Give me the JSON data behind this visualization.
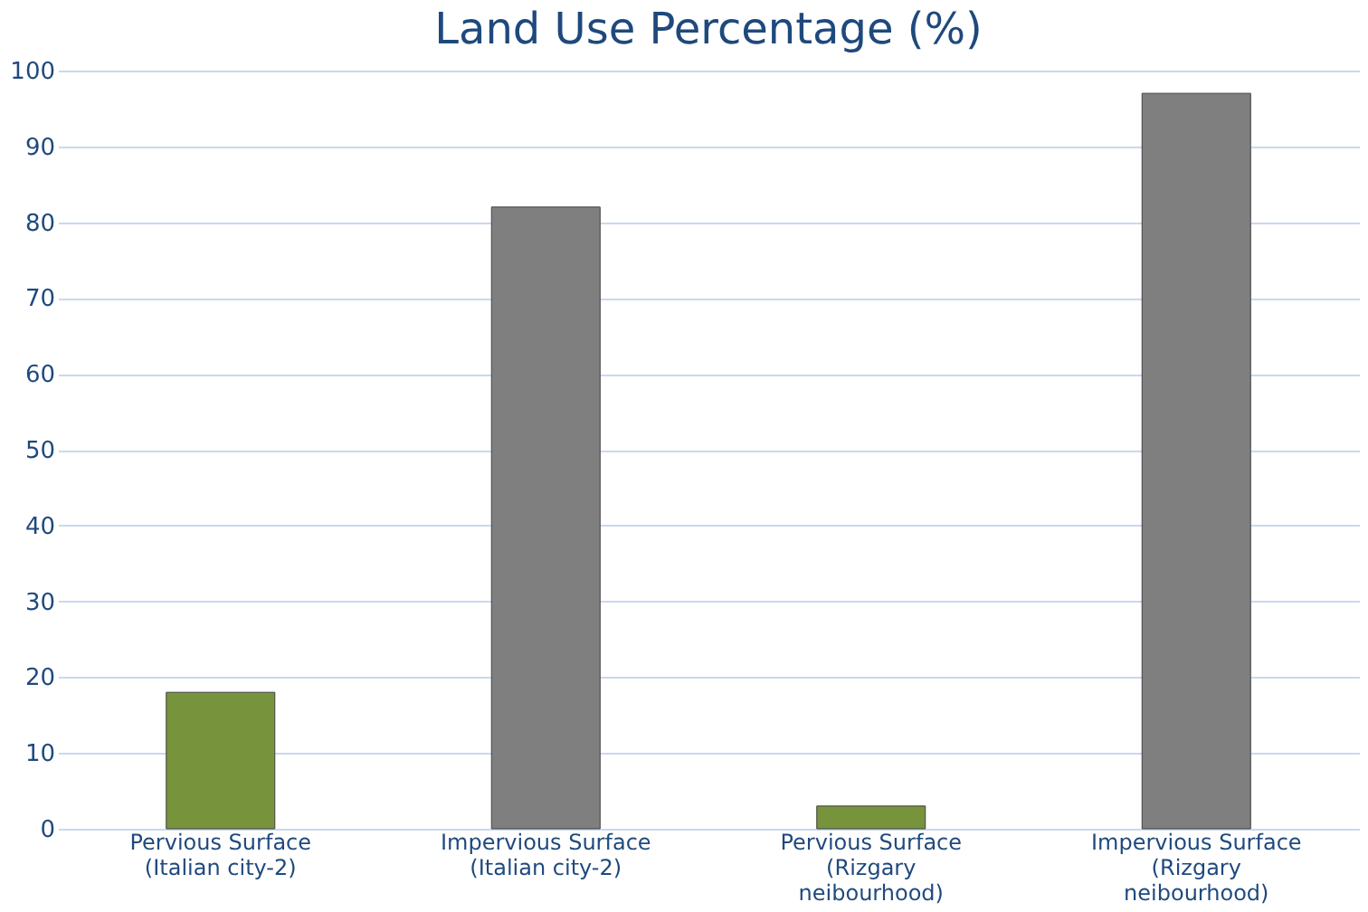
{
  "chart_data": {
    "type": "bar",
    "title": "Land Use Percentage (%)",
    "categories": [
      "Pervious Surface (Italian city-2)",
      "Impervious Surface (Italian city-2)",
      "Pervious Surface (Rizgary neibourhood)",
      "Impervious Surface (Rizgary neibourhood)"
    ],
    "values": [
      18,
      82,
      3,
      97
    ],
    "colors": [
      "#77933c",
      "#7f7f7f",
      "#77933c",
      "#7f7f7f"
    ],
    "ylim": [
      0,
      100
    ],
    "yticks": [
      0,
      10,
      20,
      30,
      40,
      50,
      60,
      70,
      80,
      90,
      100
    ],
    "grid": "y"
  }
}
